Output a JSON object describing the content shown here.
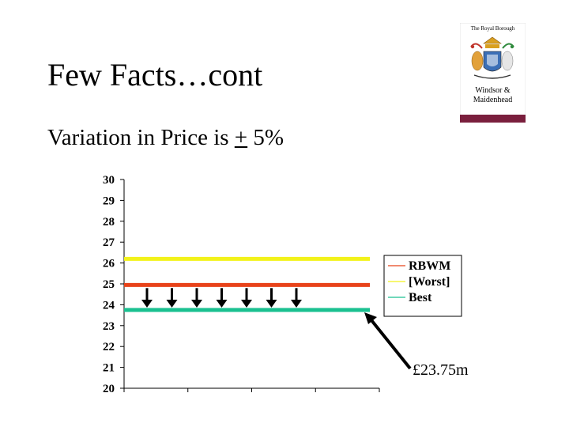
{
  "slide": {
    "title": "Few Facts…cont",
    "subtitle_prefix": "Variation in Price is ",
    "subtitle_pm": "+",
    "subtitle_suffix": " 5%"
  },
  "logo": {
    "line1": "The Royal Borough",
    "line2": "Windsor &",
    "line3": "Maidenhead",
    "accent_color": "#7a1f3d"
  },
  "chart_data": {
    "type": "line",
    "ylim": [
      20,
      30
    ],
    "yticks": [
      30,
      29,
      28,
      27,
      26,
      25,
      24,
      23,
      22,
      21,
      20
    ],
    "x_categories": 4,
    "series": [
      {
        "name": "RBWM",
        "value": 24.95,
        "color": "#e8431a"
      },
      {
        "name": "[Worst]",
        "value": 26.2,
        "color": "#f2f21a"
      },
      {
        "name": "Best",
        "value": 23.75,
        "color": "#1ac090"
      }
    ],
    "down_arrows_count": 7,
    "annotation": "£23.75m",
    "legend_position": "right"
  }
}
